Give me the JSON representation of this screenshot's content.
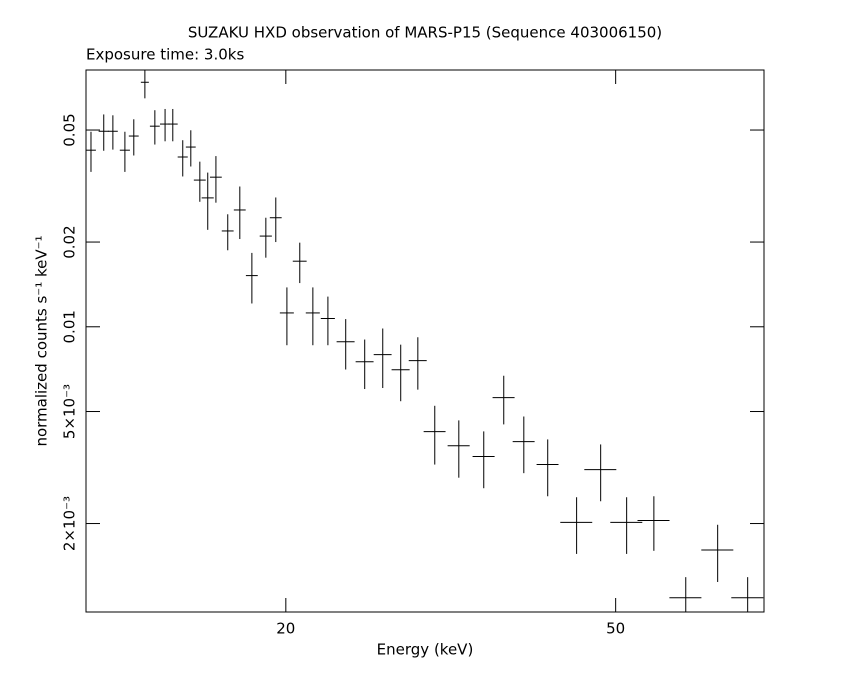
{
  "chart_data": {
    "type": "scatter",
    "title": "SUZAKU HXD observation of MARS-P15 (Sequence 403006150)",
    "subtitle": "Exposure time: 3.0ks",
    "xlabel": "Energy (keV)",
    "ylabel": "normalized counts s⁻¹ keV⁻¹",
    "color": "#000000",
    "xscale": "log",
    "yscale": "log",
    "xlim": [
      11.48,
      75.5
    ],
    "ylim": [
      0.00097,
      0.0817
    ],
    "xticks": [
      20,
      50
    ],
    "yticks": [
      0.05,
      0.02,
      0.01,
      {
        "value": 0.005,
        "label": "5×10⁻³"
      },
      {
        "value": 0.002,
        "label": "2×10⁻³"
      }
    ],
    "x": [
      11.64,
      12.06,
      12.37,
      12.79,
      13.11,
      13.52,
      13.9,
      14.3,
      14.61,
      15.02,
      15.36,
      15.75,
      16.1,
      16.47,
      17.02,
      17.6,
      18.2,
      18.92,
      19.45,
      20.06,
      20.79,
      21.56,
      22.48,
      23.62,
      24.9,
      26.18,
      27.52,
      28.86,
      30.25,
      32.34,
      34.66,
      36.64,
      38.74,
      41.4,
      44.86,
      47.96,
      51.55,
      55.6,
      60.75,
      66.38,
      72.15
    ],
    "xerr": [
      0.16,
      0.17,
      0.17,
      0.18,
      0.18,
      0.15,
      0.19,
      0.2,
      0.2,
      0.21,
      0.21,
      0.26,
      0.27,
      0.27,
      0.28,
      0.29,
      0.3,
      0.32,
      0.32,
      0.39,
      0.4,
      0.42,
      0.44,
      0.59,
      0.62,
      0.65,
      0.69,
      0.72,
      0.92,
      0.99,
      1.06,
      1.12,
      1.18,
      1.26,
      1.99,
      2.13,
      2.29,
      2.47,
      2.7,
      2.95,
      3.21
    ],
    "values": [
      0.0424,
      0.0495,
      0.0495,
      0.0424,
      0.0476,
      0.0739,
      0.0516,
      0.0525,
      0.0525,
      0.0401,
      0.0435,
      0.0332,
      0.0287,
      0.034,
      0.0219,
      0.026,
      0.0152,
      0.021,
      0.0244,
      0.0112,
      0.0171,
      0.0112,
      0.0107,
      0.00885,
      0.00751,
      0.00796,
      0.00704,
      0.00758,
      0.00424,
      0.00378,
      0.00346,
      0.0056,
      0.00391,
      0.00324,
      0.00202,
      0.00311,
      0.00202,
      0.00205,
      0.00109,
      0.00161,
      0.00109
    ],
    "yerr": [
      0.0069,
      0.0073,
      0.0069,
      0.0069,
      0.007,
      0.0091,
      0.0072,
      0.0069,
      0.0069,
      0.0059,
      0.0064,
      0.0054,
      0.0066,
      0.0064,
      0.0032,
      0.0055,
      0.0031,
      0.0034,
      0.0044,
      0.0026,
      0.0028,
      0.0026,
      0.0021,
      0.0018,
      0.0015,
      0.0019,
      0.0016,
      0.0016,
      0.001,
      0.00087,
      0.00079,
      0.0011,
      0.00089,
      0.00074,
      0.00046,
      0.00071,
      0.00046,
      0.00045,
      0.0002,
      0.00037,
      0.0002
    ]
  }
}
